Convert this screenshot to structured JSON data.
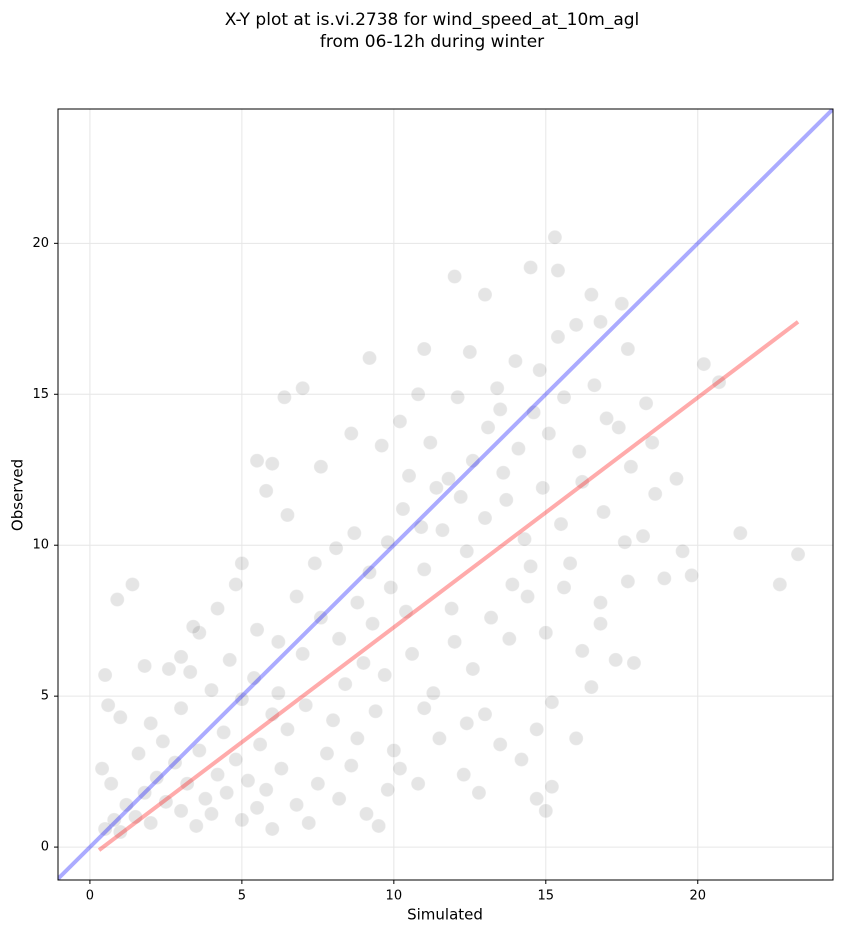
{
  "chart_data": {
    "type": "scatter",
    "title_lines": [
      "X-Y plot at is.vi.2738 for wind_speed_at_10m_agl",
      "from 06-12h during winter"
    ],
    "x_label": "Simulated",
    "y_label": "Observed",
    "xlim": [
      -1.05,
      24.45
    ],
    "ylim": [
      -1.09,
      24.45
    ],
    "xticks": [
      0,
      5,
      10,
      15,
      20
    ],
    "yticks": [
      0,
      5,
      10,
      15,
      20
    ],
    "grid": true,
    "point_color": "#000000",
    "x": [
      1,
      1.5,
      2,
      2.5,
      3,
      3.5,
      4,
      4.5,
      5,
      5.5,
      6,
      3.2,
      3.8,
      4.2,
      4.8,
      5.2,
      5.8,
      6.3,
      6.8,
      7.2,
      7.5,
      2.8,
      2.2,
      1.8,
      1.2,
      0.8,
      0.5,
      1.6,
      2.4,
      3.6,
      4.4,
      5.6,
      6.5,
      7.8,
      8.2,
      8.6,
      9.1,
      9.5,
      9.8,
      10.2,
      6,
      5,
      4,
      3,
      2,
      1,
      0.6,
      0.4,
      0.7,
      3.3,
      4.6,
      5.4,
      6.2,
      7.1,
      8,
      8.8,
      9.4,
      10,
      10.8,
      11.5,
      12.3,
      12.8,
      13.5,
      14.2,
      11,
      5.5,
      6.2,
      7,
      7.6,
      8.2,
      8.8,
      9.3,
      9.9,
      10.4,
      11,
      6.8,
      7.4,
      8.1,
      8.7,
      9.2,
      9.8,
      10.3,
      10.9,
      11.4,
      6.5,
      5.8,
      5.5,
      6,
      7.6,
      8.6,
      9.6,
      10.5,
      5,
      4.8,
      4.2,
      3.6,
      3,
      2.6,
      1.8,
      8.4,
      9,
      9.7,
      10.6,
      11.3,
      12,
      12.6,
      13.2,
      13.8,
      14.4,
      15,
      15.6,
      16.2,
      16.8,
      17.3,
      17.9,
      16.5,
      15.2,
      14.7,
      13,
      12.4,
      11.2,
      11.8,
      12.2,
      12.6,
      13.1,
      13.6,
      14.1,
      14.6,
      15.1,
      15.6,
      16.1,
      16.6,
      17,
      12.1,
      12.5,
      13.4,
      14,
      14.8,
      15.4,
      16,
      16.8,
      11.6,
      12.4,
      13,
      13.7,
      14.3,
      14.9,
      15.5,
      16.2,
      16.9,
      17.6,
      18.2,
      17.8,
      18.5,
      17.4,
      18.6,
      19.3,
      19.5,
      19.8,
      18.9,
      17.7,
      16.8,
      15.8,
      14.5,
      13.9,
      11.9,
      13.5,
      17.7,
      18.3,
      10.2,
      10.8,
      11,
      20.2,
      20.7,
      21.4,
      22.7,
      23.3,
      15.3,
      14.5,
      15.4,
      12,
      13,
      16.5,
      17.5,
      0.5,
      1.4,
      0.9,
      3.4,
      9.2,
      6.4,
      7,
      15,
      15.2,
      14.7,
      16
    ],
    "y": [
      0.5,
      1,
      0.8,
      1.5,
      1.2,
      0.7,
      1.1,
      1.8,
      0.9,
      1.3,
      0.6,
      2.1,
      1.6,
      2.4,
      2.9,
      2.2,
      1.9,
      2.6,
      1.4,
      0.8,
      2.1,
      2.8,
      2.3,
      1.8,
      1.4,
      0.9,
      0.6,
      3.1,
      3.5,
      3.2,
      3.8,
      3.4,
      3.9,
      3.1,
      1.6,
      2.7,
      1.1,
      0.7,
      1.9,
      2.6,
      4.4,
      4.9,
      5.2,
      4.6,
      4.1,
      4.3,
      4.7,
      2.6,
      2.1,
      5.8,
      6.2,
      5.6,
      5.1,
      4.7,
      4.2,
      3.6,
      4.5,
      3.2,
      2.1,
      3.6,
      2.4,
      1.8,
      3.4,
      2.9,
      4.6,
      7.2,
      6.8,
      6.4,
      7.6,
      6.9,
      8.1,
      7.4,
      8.6,
      7.8,
      9.2,
      8.3,
      9.4,
      9.9,
      10.4,
      9.1,
      10.1,
      11.2,
      10.6,
      11.9,
      11,
      11.8,
      12.8,
      12.7,
      12.6,
      13.7,
      13.3,
      12.3,
      9.4,
      8.7,
      7.9,
      7.1,
      6.3,
      5.9,
      6,
      5.4,
      6.1,
      5.7,
      6.4,
      5.1,
      6.8,
      5.9,
      7.6,
      6.9,
      8.3,
      7.1,
      8.6,
      6.5,
      7.4,
      6.2,
      6.1,
      5.3,
      4.8,
      3.9,
      4.4,
      4.1,
      13.4,
      12.2,
      11.6,
      12.8,
      13.9,
      12.4,
      13.2,
      14.4,
      13.7,
      14.9,
      13.1,
      15.3,
      14.2,
      14.9,
      16.4,
      15.2,
      16.1,
      15.8,
      16.9,
      17.3,
      17.4,
      10.5,
      9.8,
      10.9,
      11.5,
      10.2,
      11.9,
      10.7,
      12.1,
      11.1,
      10.1,
      10.3,
      12.6,
      13.4,
      13.9,
      11.7,
      12.2,
      9.8,
      9,
      8.9,
      8.8,
      8.1,
      9.4,
      9.3,
      8.7,
      7.9,
      14.5,
      16.5,
      14.7,
      14.1,
      15,
      16.5,
      16,
      15.4,
      10.4,
      8.7,
      9.7,
      20.2,
      19.2,
      19.1,
      18.9,
      18.3,
      18.3,
      18,
      5.7,
      8.7,
      8.2,
      7.3,
      16.2,
      14.9,
      15.2,
      1.2,
      2,
      1.6,
      3.6
    ],
    "lines": [
      {
        "color": "#0000ff",
        "x": [
          -1.05,
          24.45
        ],
        "y": [
          -1.05,
          24.45
        ]
      },
      {
        "color": "#ff0000",
        "x": [
          0.3,
          23.3
        ],
        "y": [
          -0.1,
          17.4
        ]
      }
    ]
  }
}
